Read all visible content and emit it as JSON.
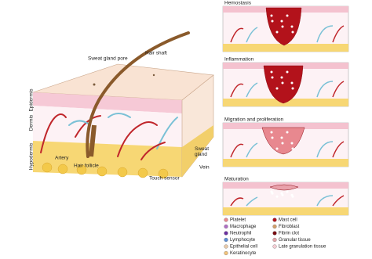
{
  "skin": {
    "sweat_gland_pore": "Sweat gland pore",
    "hair_shaft": "Hair shaft",
    "epidermis": "Epidermis",
    "dermis": "Dermis",
    "hypodermis": "Hypodermis",
    "artery": "Artery",
    "hair_follicle": "Hair follicle",
    "sweat_gland": "Sweat\ngland",
    "vein": "Vein",
    "touch_sensor": "Touch sensor"
  },
  "stages": [
    "Hemostasis",
    "Inflammation",
    "Migration and proliferation",
    "Maturation"
  ],
  "legend": [
    "Platelet",
    "Mast cell",
    "Macrophage",
    "Fibroblast",
    "Neutrophil",
    "Fibrin clot",
    "Lymphocyte",
    "Granular tissue",
    "Epithelial cell",
    "Late granulation tissue",
    "Keratinocyte"
  ]
}
